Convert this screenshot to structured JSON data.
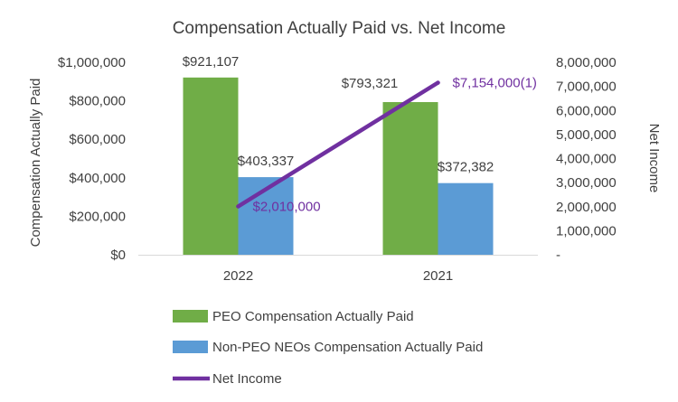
{
  "chart_data": {
    "type": "bar",
    "title": "Compensation Actually Paid vs. Net Income",
    "categories": [
      "2022",
      "2021"
    ],
    "ylabel": "Compensation Actually Paid",
    "y2label": "Net Income",
    "ylim": [
      0,
      1000000
    ],
    "y2lim": [
      0,
      8000000
    ],
    "y_ticks": [
      "$0",
      "$200,000",
      "$400,000",
      "$600,000",
      "$800,000",
      "$1,000,000"
    ],
    "y2_ticks": [
      "-",
      "1,000,000",
      "2,000,000",
      "3,000,000",
      "4,000,000",
      "5,000,000",
      "6,000,000",
      "7,000,000",
      "8,000,000"
    ],
    "grid": false,
    "legend_position": "bottom",
    "series": [
      {
        "name": "PEO Compensation Actually Paid",
        "kind": "bar",
        "axis": "left",
        "color": "#70ad47",
        "values": [
          921107,
          793321
        ],
        "labels": [
          "$921,107",
          "$793,321"
        ]
      },
      {
        "name": "Non-PEO NEOs Compensation Actually Paid",
        "kind": "bar",
        "axis": "left",
        "color": "#5b9bd5",
        "values": [
          403337,
          372382
        ],
        "labels": [
          "$403,337",
          "$372,382"
        ]
      },
      {
        "name": "Net Income",
        "kind": "line",
        "axis": "right",
        "color": "#7030a0",
        "values": [
          2010000,
          7154000
        ],
        "labels": [
          "$2,010,000",
          "$7,154,000(1)"
        ]
      }
    ]
  }
}
